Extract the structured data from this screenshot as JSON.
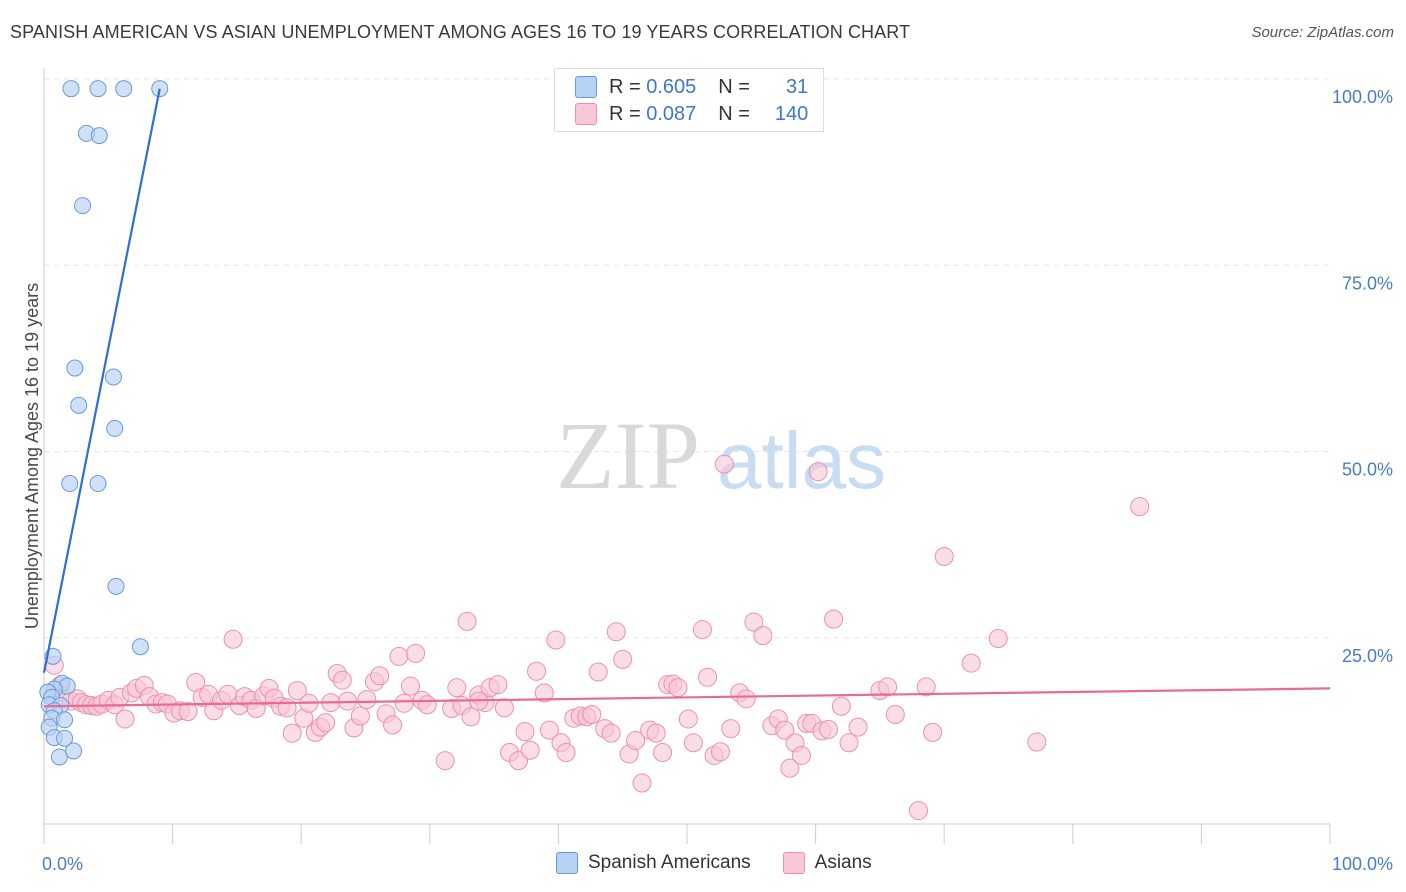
{
  "title": "SPANISH AMERICAN VS ASIAN UNEMPLOYMENT AMONG AGES 16 TO 19 YEARS CORRELATION CHART",
  "source": "Source: ZipAtlas.com",
  "watermark": {
    "zip": "ZIP",
    "atlas": "atlas"
  },
  "legend": {
    "rows": [
      {
        "r_label": "R =",
        "r_value": "0.605",
        "n_label": "N =",
        "n_value": "31"
      },
      {
        "r_label": "R =",
        "r_value": "0.087",
        "n_label": "N =",
        "n_value": "140"
      }
    ]
  },
  "bottom_legend": [
    "Spanish Americans",
    "Asians"
  ],
  "colors": {
    "blue_fill": "#b7d1f3",
    "blue_stroke": "#6a9ad8",
    "blue_line": "#2f6fd0",
    "pink_fill": "#f9c7d7",
    "pink_stroke": "#ee8fb0",
    "pink_line": "#e86a97",
    "tick": "#4a7cc9"
  },
  "chart_data": {
    "type": "scatter",
    "title": "SPANISH AMERICAN VS ASIAN UNEMPLOYMENT AMONG AGES 16 TO 19 YEARS CORRELATION CHART",
    "xlabel": "",
    "ylabel": "Unemployment Among Ages 16 to 19 years",
    "xlim": [
      0,
      100
    ],
    "ylim": [
      0,
      100
    ],
    "x_tick_labels": [
      "0.0%",
      "100.0%"
    ],
    "y_tick_labels": [
      {
        "value": 25,
        "label": "25.0%"
      },
      {
        "value": 50,
        "label": "50.0%"
      },
      {
        "value": 75,
        "label": "75.0%"
      },
      {
        "value": 100,
        "label": "100.0%"
      }
    ],
    "series": [
      {
        "name": "Spanish Americans",
        "R": 0.605,
        "N": 31,
        "trend": {
          "x0": 0.0,
          "y0": 20.3,
          "x1": 9.0,
          "y1": 98.7
        },
        "points": [
          [
            2.1,
            98.7
          ],
          [
            4.2,
            98.7
          ],
          [
            6.2,
            98.7
          ],
          [
            9.0,
            98.7
          ],
          [
            3.3,
            92.7
          ],
          [
            4.3,
            92.4
          ],
          [
            3.0,
            83.0
          ],
          [
            2.4,
            61.2
          ],
          [
            5.4,
            60.0
          ],
          [
            2.7,
            56.2
          ],
          [
            5.5,
            53.1
          ],
          [
            2.0,
            45.7
          ],
          [
            4.2,
            45.7
          ],
          [
            5.6,
            31.9
          ],
          [
            7.5,
            23.8
          ],
          [
            0.7,
            22.5
          ],
          [
            1.4,
            18.9
          ],
          [
            1.8,
            18.5
          ],
          [
            0.8,
            18.1
          ],
          [
            0.3,
            17.7
          ],
          [
            0.6,
            17.0
          ],
          [
            0.4,
            16.0
          ],
          [
            1.3,
            15.9
          ],
          [
            0.8,
            15.2
          ],
          [
            0.6,
            14.2
          ],
          [
            1.6,
            14.0
          ],
          [
            0.4,
            13.0
          ],
          [
            0.8,
            11.6
          ],
          [
            1.6,
            11.5
          ],
          [
            1.2,
            9.0
          ],
          [
            2.3,
            9.8
          ]
        ]
      },
      {
        "name": "Asians",
        "R": 0.087,
        "N": 140,
        "trend": {
          "x0": 0.0,
          "y0": 15.8,
          "x1": 100.0,
          "y1": 18.2
        },
        "points": [
          [
            0.8,
            21.3
          ],
          [
            1.2,
            18.5
          ],
          [
            1.5,
            17.1
          ],
          [
            2.1,
            16.5
          ],
          [
            2.6,
            16.8
          ],
          [
            2.9,
            16.3
          ],
          [
            3.3,
            16.0
          ],
          [
            3.7,
            15.9
          ],
          [
            4.1,
            15.8
          ],
          [
            4.5,
            16.1
          ],
          [
            5.0,
            16.6
          ],
          [
            5.5,
            16.0
          ],
          [
            5.9,
            17.0
          ],
          [
            6.3,
            14.1
          ],
          [
            6.8,
            17.6
          ],
          [
            7.2,
            18.2
          ],
          [
            7.8,
            18.6
          ],
          [
            8.2,
            17.1
          ],
          [
            8.7,
            16.1
          ],
          [
            9.2,
            16.3
          ],
          [
            9.6,
            16.1
          ],
          [
            10.1,
            14.9
          ],
          [
            10.6,
            15.2
          ],
          [
            11.2,
            15.1
          ],
          [
            11.8,
            19.0
          ],
          [
            12.3,
            17.0
          ],
          [
            12.8,
            17.4
          ],
          [
            13.2,
            15.2
          ],
          [
            13.8,
            16.6
          ],
          [
            14.3,
            17.4
          ],
          [
            14.7,
            24.8
          ],
          [
            15.2,
            15.9
          ],
          [
            15.6,
            17.1
          ],
          [
            16.1,
            16.6
          ],
          [
            16.5,
            15.5
          ],
          [
            17.1,
            17.2
          ],
          [
            17.5,
            18.2
          ],
          [
            17.9,
            16.9
          ],
          [
            18.4,
            15.8
          ],
          [
            18.9,
            15.6
          ],
          [
            19.3,
            12.2
          ],
          [
            19.7,
            17.9
          ],
          [
            20.2,
            14.2
          ],
          [
            20.6,
            16.2
          ],
          [
            21.1,
            12.3
          ],
          [
            21.5,
            13.0
          ],
          [
            21.9,
            13.6
          ],
          [
            22.3,
            16.3
          ],
          [
            22.8,
            20.2
          ],
          [
            23.2,
            19.3
          ],
          [
            23.6,
            16.5
          ],
          [
            24.1,
            12.9
          ],
          [
            24.6,
            14.5
          ],
          [
            25.1,
            16.7
          ],
          [
            25.7,
            19.1
          ],
          [
            26.1,
            19.9
          ],
          [
            26.6,
            14.8
          ],
          [
            27.1,
            13.3
          ],
          [
            27.6,
            22.5
          ],
          [
            28.0,
            16.2
          ],
          [
            28.5,
            18.5
          ],
          [
            28.9,
            22.9
          ],
          [
            29.4,
            16.6
          ],
          [
            29.8,
            16.0
          ],
          [
            31.2,
            8.5
          ],
          [
            31.7,
            15.5
          ],
          [
            32.1,
            18.3
          ],
          [
            32.5,
            15.9
          ],
          [
            32.9,
            27.2
          ],
          [
            33.2,
            14.4
          ],
          [
            33.8,
            17.3
          ],
          [
            34.3,
            16.3
          ],
          [
            34.7,
            18.3
          ],
          [
            35.3,
            18.7
          ],
          [
            35.8,
            15.6
          ],
          [
            36.2,
            9.6
          ],
          [
            36.9,
            8.5
          ],
          [
            37.4,
            12.4
          ],
          [
            37.8,
            9.9
          ],
          [
            38.3,
            20.5
          ],
          [
            38.9,
            17.6
          ],
          [
            39.3,
            12.6
          ],
          [
            39.8,
            24.7
          ],
          [
            40.2,
            10.9
          ],
          [
            40.6,
            9.6
          ],
          [
            41.2,
            14.2
          ],
          [
            41.7,
            14.5
          ],
          [
            42.2,
            14.4
          ],
          [
            42.6,
            14.7
          ],
          [
            43.1,
            20.4
          ],
          [
            43.6,
            12.8
          ],
          [
            44.1,
            12.2
          ],
          [
            44.5,
            25.8
          ],
          [
            45.0,
            22.1
          ],
          [
            45.5,
            9.4
          ],
          [
            46.0,
            11.2
          ],
          [
            46.5,
            5.5
          ],
          [
            47.1,
            12.6
          ],
          [
            47.6,
            12.2
          ],
          [
            48.1,
            9.6
          ],
          [
            48.5,
            18.7
          ],
          [
            48.9,
            18.8
          ],
          [
            49.3,
            18.3
          ],
          [
            50.1,
            14.1
          ],
          [
            50.5,
            10.9
          ],
          [
            51.2,
            26.1
          ],
          [
            51.6,
            19.7
          ],
          [
            52.1,
            9.2
          ],
          [
            52.6,
            9.7
          ],
          [
            52.9,
            48.3
          ],
          [
            53.4,
            12.8
          ],
          [
            54.1,
            17.6
          ],
          [
            54.6,
            16.8
          ],
          [
            55.2,
            27.1
          ],
          [
            55.9,
            25.3
          ],
          [
            56.6,
            13.2
          ],
          [
            57.1,
            14.1
          ],
          [
            57.6,
            12.6
          ],
          [
            58.0,
            7.5
          ],
          [
            58.4,
            10.9
          ],
          [
            58.9,
            9.2
          ],
          [
            59.3,
            13.5
          ],
          [
            59.7,
            13.5
          ],
          [
            60.2,
            47.3
          ],
          [
            60.5,
            12.5
          ],
          [
            61.0,
            12.7
          ],
          [
            61.4,
            27.5
          ],
          [
            62.0,
            15.8
          ],
          [
            62.6,
            10.9
          ],
          [
            63.3,
            13.0
          ],
          [
            65.0,
            17.9
          ],
          [
            65.6,
            18.4
          ],
          [
            66.2,
            14.7
          ],
          [
            68.6,
            18.4
          ],
          [
            69.1,
            12.3
          ],
          [
            70.0,
            35.9
          ],
          [
            72.1,
            21.6
          ],
          [
            74.2,
            24.9
          ],
          [
            77.2,
            11.0
          ],
          [
            85.2,
            42.6
          ],
          [
            68.0,
            1.8
          ],
          [
            33.8,
            16.5
          ]
        ]
      }
    ]
  }
}
